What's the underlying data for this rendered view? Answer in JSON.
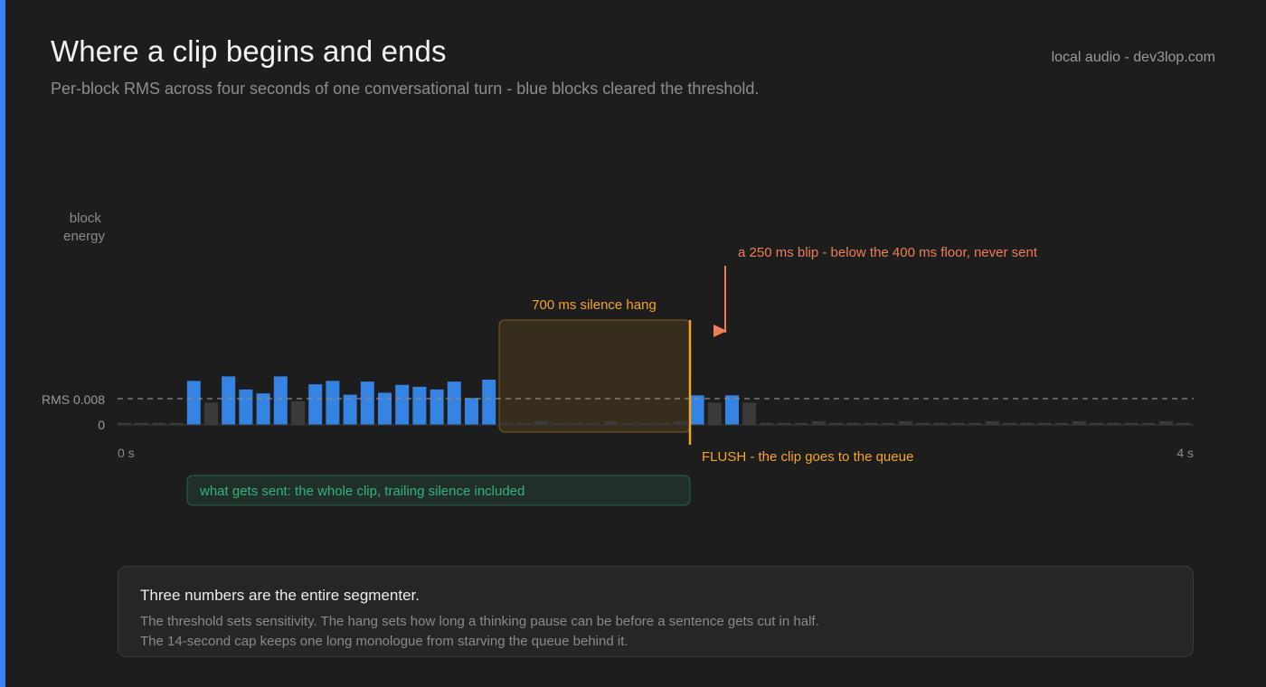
{
  "header": {
    "title": "Where a clip begins and ends",
    "subtitle": "Per-block RMS across four seconds of one conversational turn - blue blocks cleared the threshold.",
    "source": "local audio - dev3lop.com"
  },
  "colors": {
    "active": "#3584e4",
    "silent": "#3a3a3a",
    "hang": "#f5a623",
    "blip": "#ef7d57",
    "sent": "#34b27b"
  },
  "chart_data": {
    "type": "bar",
    "ylabel": "block\nenergy",
    "threshold_label": "RMS 0.008",
    "zero_label": "0",
    "x_start_label": "0 s",
    "x_end_label": "4 s",
    "duration_s": 4,
    "block_ms": 67,
    "threshold_rms": 0.008,
    "rms": [
      0.0006,
      0.0006,
      0.0006,
      0.0006,
      0.0134,
      0.0068,
      0.0148,
      0.0108,
      0.0096,
      0.0148,
      0.0072,
      0.0124,
      0.0134,
      0.0092,
      0.0132,
      0.0098,
      0.0122,
      0.0116,
      0.0108,
      0.0132,
      0.0082,
      0.0138,
      0.0006,
      0.0006,
      0.0011,
      0.0006,
      0.0006,
      0.0006,
      0.0011,
      0.0006,
      0.0006,
      0.0006,
      0.0011,
      0.009,
      0.0068,
      0.009,
      0.0068,
      0.0006,
      0.0006,
      0.0006,
      0.0011,
      0.0006,
      0.0006,
      0.0006,
      0.0006,
      0.0011,
      0.0006,
      0.0006,
      0.0006,
      0.0006,
      0.0011,
      0.0006,
      0.0006,
      0.0006,
      0.0006,
      0.0011,
      0.0006,
      0.0006,
      0.0006,
      0.0006,
      0.0011,
      0.0006
    ],
    "annotations": {
      "hang": "700 ms silence hang",
      "blip": "a 250 ms blip - below the 400 ms floor, never sent",
      "flush": "FLUSH - the clip goes to the queue",
      "sent": "what gets sent: the whole clip, trailing silence included"
    }
  },
  "note": {
    "title": "Three numbers are the entire segmenter.",
    "line1": "The threshold sets sensitivity. The hang sets how long a thinking pause can be before a sentence gets cut in half.",
    "line2": "The 14-second cap keeps one long monologue from starving the queue behind it."
  }
}
